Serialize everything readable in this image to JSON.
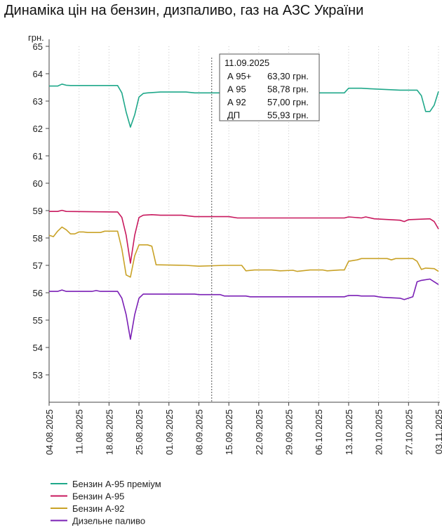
{
  "chart_data": {
    "type": "line",
    "title": "Динаміка цін на бензин, дизпаливо, газ на АЗС України",
    "ylabel": "грн.",
    "xlabel": "",
    "ylim": [
      52,
      65
    ],
    "yticks": [
      53,
      54,
      55,
      56,
      57,
      58,
      59,
      60,
      61,
      62,
      63,
      64,
      65
    ],
    "x_start": "2025-08-04",
    "x_end": "2025-11-03",
    "xticks": [
      {
        "date": "2025-08-04",
        "label": "04.08.2025"
      },
      {
        "date": "2025-08-11",
        "label": "11.08.2025"
      },
      {
        "date": "2025-08-18",
        "label": "18.08.2025"
      },
      {
        "date": "2025-08-25",
        "label": "25.08.2025"
      },
      {
        "date": "2025-09-01",
        "label": "01.09.2025"
      },
      {
        "date": "2025-09-08",
        "label": "08.09.2025"
      },
      {
        "date": "2025-09-15",
        "label": "15.09.2025"
      },
      {
        "date": "2025-09-22",
        "label": "22.09.2025"
      },
      {
        "date": "2025-09-29",
        "label": "29.09.2025"
      },
      {
        "date": "2025-10-06",
        "label": "06.10.2025"
      },
      {
        "date": "2025-10-13",
        "label": "13.10.2025"
      },
      {
        "date": "2025-10-20",
        "label": "20.10.2025"
      },
      {
        "date": "2025-10-27",
        "label": "27.10.2025"
      },
      {
        "date": "2025-11-03",
        "label": "03.11.2025"
      }
    ],
    "grid": "vertical-dotted",
    "legend_position": "bottom",
    "series": [
      {
        "name": "Бензин А-95 преміум",
        "color": "#1fa88a",
        "points": [
          [
            "2025-08-04",
            63.55
          ],
          [
            "2025-08-05",
            63.55
          ],
          [
            "2025-08-06",
            63.55
          ],
          [
            "2025-08-07",
            63.62
          ],
          [
            "2025-08-08",
            63.58
          ],
          [
            "2025-08-09",
            63.57
          ],
          [
            "2025-08-15",
            63.57
          ],
          [
            "2025-08-19",
            63.57
          ],
          [
            "2025-08-20",
            63.57
          ],
          [
            "2025-08-21",
            63.3
          ],
          [
            "2025-08-22",
            62.6
          ],
          [
            "2025-08-23",
            62.05
          ],
          [
            "2025-08-24",
            62.5
          ],
          [
            "2025-08-25",
            63.15
          ],
          [
            "2025-08-26",
            63.28
          ],
          [
            "2025-08-27",
            63.3
          ],
          [
            "2025-08-30",
            63.33
          ],
          [
            "2025-09-05",
            63.33
          ],
          [
            "2025-09-07",
            63.3
          ],
          [
            "2025-10-12",
            63.3
          ],
          [
            "2025-10-13",
            63.47
          ],
          [
            "2025-10-16",
            63.47
          ],
          [
            "2025-10-18",
            63.45
          ],
          [
            "2025-10-25",
            63.4
          ],
          [
            "2025-10-29",
            63.4
          ],
          [
            "2025-10-30",
            63.2
          ],
          [
            "2025-10-31",
            62.62
          ],
          [
            "2025-11-01",
            62.62
          ],
          [
            "2025-11-02",
            62.85
          ],
          [
            "2025-11-03",
            63.35
          ]
        ]
      },
      {
        "name": "Бензин А-95",
        "color": "#c8195e",
        "points": [
          [
            "2025-08-04",
            58.97
          ],
          [
            "2025-08-06",
            58.97
          ],
          [
            "2025-08-07",
            59.01
          ],
          [
            "2025-08-08",
            58.97
          ],
          [
            "2025-08-19",
            58.95
          ],
          [
            "2025-08-20",
            58.95
          ],
          [
            "2025-08-21",
            58.75
          ],
          [
            "2025-08-22",
            58.1
          ],
          [
            "2025-08-23",
            57.08
          ],
          [
            "2025-08-24",
            58.1
          ],
          [
            "2025-08-25",
            58.75
          ],
          [
            "2025-08-26",
            58.83
          ],
          [
            "2025-08-28",
            58.85
          ],
          [
            "2025-08-30",
            58.83
          ],
          [
            "2025-09-04",
            58.83
          ],
          [
            "2025-09-07",
            58.78
          ],
          [
            "2025-09-15",
            58.78
          ],
          [
            "2025-09-17",
            58.73
          ],
          [
            "2025-10-12",
            58.73
          ],
          [
            "2025-10-13",
            58.77
          ],
          [
            "2025-10-16",
            58.73
          ],
          [
            "2025-10-17",
            58.77
          ],
          [
            "2025-10-19",
            58.7
          ],
          [
            "2025-10-25",
            58.65
          ],
          [
            "2025-10-26",
            58.6
          ],
          [
            "2025-10-27",
            58.67
          ],
          [
            "2025-11-01",
            58.7
          ],
          [
            "2025-11-02",
            58.6
          ],
          [
            "2025-11-03",
            58.33
          ]
        ]
      },
      {
        "name": "Бензин А-92",
        "color": "#c9a227",
        "points": [
          [
            "2025-08-04",
            58.1
          ],
          [
            "2025-08-05",
            58.05
          ],
          [
            "2025-08-06",
            58.25
          ],
          [
            "2025-08-07",
            58.4
          ],
          [
            "2025-08-08",
            58.3
          ],
          [
            "2025-08-09",
            58.15
          ],
          [
            "2025-08-10",
            58.15
          ],
          [
            "2025-08-11",
            58.22
          ],
          [
            "2025-08-12",
            58.22
          ],
          [
            "2025-08-13",
            58.2
          ],
          [
            "2025-08-16",
            58.2
          ],
          [
            "2025-08-17",
            58.25
          ],
          [
            "2025-08-20",
            58.25
          ],
          [
            "2025-08-21",
            57.6
          ],
          [
            "2025-08-22",
            56.65
          ],
          [
            "2025-08-23",
            56.57
          ],
          [
            "2025-08-24",
            57.35
          ],
          [
            "2025-08-25",
            57.75
          ],
          [
            "2025-08-27",
            57.75
          ],
          [
            "2025-08-28",
            57.7
          ],
          [
            "2025-08-29",
            57.02
          ],
          [
            "2025-09-05",
            57.0
          ],
          [
            "2025-09-08",
            56.97
          ],
          [
            "2025-09-14",
            57.0
          ],
          [
            "2025-09-18",
            57.0
          ],
          [
            "2025-09-19",
            56.8
          ],
          [
            "2025-09-21",
            56.83
          ],
          [
            "2025-09-25",
            56.83
          ],
          [
            "2025-09-27",
            56.8
          ],
          [
            "2025-09-30",
            56.82
          ],
          [
            "2025-10-01",
            56.78
          ],
          [
            "2025-10-04",
            56.83
          ],
          [
            "2025-10-07",
            56.83
          ],
          [
            "2025-10-08",
            56.8
          ],
          [
            "2025-10-11",
            56.83
          ],
          [
            "2025-10-12",
            56.83
          ],
          [
            "2025-10-13",
            57.15
          ],
          [
            "2025-10-15",
            57.2
          ],
          [
            "2025-10-16",
            57.25
          ],
          [
            "2025-10-22",
            57.25
          ],
          [
            "2025-10-23",
            57.2
          ],
          [
            "2025-10-24",
            57.25
          ],
          [
            "2025-10-28",
            57.25
          ],
          [
            "2025-10-29",
            57.15
          ],
          [
            "2025-10-30",
            56.85
          ],
          [
            "2025-10-31",
            56.9
          ],
          [
            "2025-11-02",
            56.88
          ],
          [
            "2025-11-03",
            56.78
          ]
        ]
      },
      {
        "name": "Дизельне паливо",
        "color": "#7a1fb5",
        "points": [
          [
            "2025-08-04",
            56.05
          ],
          [
            "2025-08-06",
            56.05
          ],
          [
            "2025-08-07",
            56.1
          ],
          [
            "2025-08-08",
            56.05
          ],
          [
            "2025-08-14",
            56.05
          ],
          [
            "2025-08-15",
            56.08
          ],
          [
            "2025-08-16",
            56.05
          ],
          [
            "2025-08-20",
            56.05
          ],
          [
            "2025-08-21",
            55.8
          ],
          [
            "2025-08-22",
            55.2
          ],
          [
            "2025-08-23",
            54.3
          ],
          [
            "2025-08-24",
            55.2
          ],
          [
            "2025-08-25",
            55.8
          ],
          [
            "2025-08-26",
            55.95
          ],
          [
            "2025-09-07",
            55.95
          ],
          [
            "2025-09-08",
            55.93
          ],
          [
            "2025-09-13",
            55.93
          ],
          [
            "2025-09-14",
            55.88
          ],
          [
            "2025-09-19",
            55.88
          ],
          [
            "2025-09-20",
            55.85
          ],
          [
            "2025-10-12",
            55.85
          ],
          [
            "2025-10-13",
            55.9
          ],
          [
            "2025-10-15",
            55.9
          ],
          [
            "2025-10-16",
            55.88
          ],
          [
            "2025-10-19",
            55.88
          ],
          [
            "2025-10-20",
            55.85
          ],
          [
            "2025-10-21",
            55.83
          ],
          [
            "2025-10-25",
            55.8
          ],
          [
            "2025-10-26",
            55.75
          ],
          [
            "2025-10-27",
            55.8
          ],
          [
            "2025-10-28",
            55.85
          ],
          [
            "2025-10-29",
            56.4
          ],
          [
            "2025-10-30",
            56.45
          ],
          [
            "2025-11-01",
            56.5
          ],
          [
            "2025-11-02",
            56.4
          ],
          [
            "2025-11-03",
            56.3
          ]
        ]
      }
    ],
    "tooltip": {
      "date": "2025-09-11",
      "date_label": "11.09.2025",
      "rows": [
        {
          "label": "А 95+",
          "value": "63,30 грн."
        },
        {
          "label": "А 95",
          "value": "58,78 грн."
        },
        {
          "label": "А 92",
          "value": "57,00 грн."
        },
        {
          "label": "ДП",
          "value": "55,93 грн."
        }
      ]
    }
  }
}
